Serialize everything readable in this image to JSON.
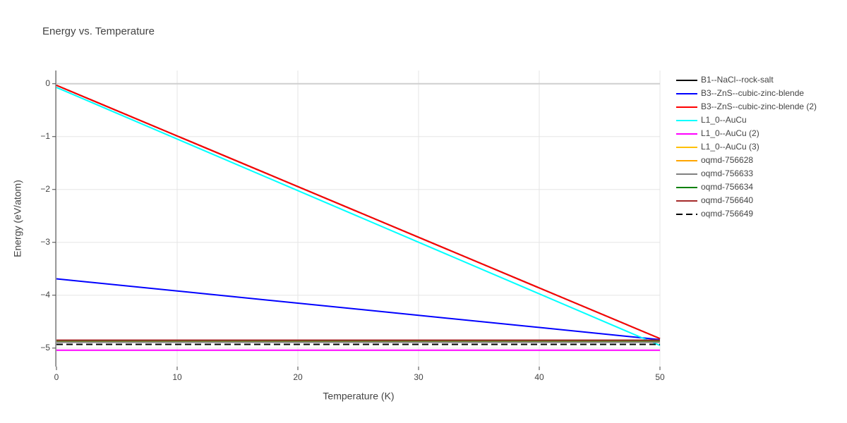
{
  "chart_data": {
    "type": "line",
    "title": "Energy vs. Temperature",
    "x_label": "Temperature (K)",
    "y_label": "Energy (eV/atom)",
    "x": [
      0,
      50
    ],
    "series": [
      {
        "name": "B1--NaCl--rock-salt",
        "color": "#000000",
        "values": [
          -0.03,
          -4.82
        ]
      },
      {
        "name": "B3--ZnS--cubic-zinc-blende",
        "color": "#0000ff",
        "values": [
          -3.69,
          -4.84
        ]
      },
      {
        "name": "B3--ZnS--cubic-zinc-blende (2)",
        "color": "#ff0000",
        "values": [
          -0.03,
          -4.82
        ]
      },
      {
        "name": "L1_0--AuCu",
        "color": "#00ffff",
        "values": [
          -0.07,
          -4.95
        ]
      },
      {
        "name": "L1_0--AuCu (2)",
        "color": "#ff00ff",
        "values": [
          -5.04,
          -5.04
        ]
      },
      {
        "name": "L1_0--AuCu (3)",
        "color": "#ffc000",
        "values": [
          -4.87,
          -4.87
        ]
      },
      {
        "name": "oqmd-756628",
        "color": "#ffa500",
        "values": [
          -4.87,
          -4.87
        ]
      },
      {
        "name": "oqmd-756633",
        "color": "#808080",
        "values": [
          -4.89,
          -4.89
        ]
      },
      {
        "name": "oqmd-756634",
        "color": "#008000",
        "values": [
          -4.86,
          -4.86
        ]
      },
      {
        "name": "oqmd-756640",
        "color": "#a52a2a",
        "values": [
          -4.85,
          -4.85
        ]
      },
      {
        "name": "oqmd-756649",
        "color": "#000000",
        "dash": "dash",
        "values": [
          -4.93,
          -4.93
        ]
      }
    ],
    "xlim": [
      0,
      50
    ],
    "xticks": [
      0,
      10,
      20,
      30,
      40,
      50
    ],
    "ylim": [
      -5.35,
      0.25
    ],
    "yticks": [
      0,
      {
        "value": -1,
        "label": "−1"
      },
      {
        "value": -2,
        "label": "−2"
      },
      {
        "value": -3,
        "label": "−3"
      },
      {
        "value": -4,
        "label": "−4"
      },
      {
        "value": -5,
        "label": "−5"
      }
    ],
    "grid": true
  }
}
